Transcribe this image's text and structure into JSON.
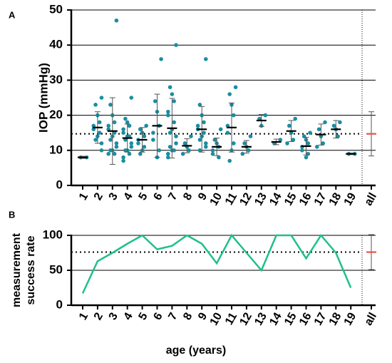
{
  "chart_data": [
    {
      "type": "dotplot",
      "panel": "A",
      "ylabel": "IOP (mmHg)",
      "categories": [
        "1",
        "2",
        "3",
        "4",
        "5",
        "6",
        "7",
        "8",
        "9",
        "10",
        "11",
        "12",
        "13",
        "14",
        "15",
        "16",
        "17",
        "18",
        "19"
      ],
      "points": [
        [
          8,
          8
        ],
        [
          25,
          23,
          20,
          18,
          17,
          16,
          15,
          14,
          13,
          12,
          10
        ],
        [
          47,
          23,
          20,
          18,
          17,
          16,
          15,
          14,
          13,
          12,
          11,
          10,
          10,
          9,
          9
        ],
        [
          25,
          19,
          18,
          17,
          16,
          15,
          14,
          14,
          13,
          12,
          11,
          10,
          10,
          9,
          8,
          7
        ],
        [
          17,
          16,
          15,
          14,
          13,
          12,
          11,
          10,
          9
        ],
        [
          36,
          24,
          21,
          17,
          15,
          13,
          10,
          8
        ],
        [
          40,
          28,
          26,
          24,
          21,
          20,
          18,
          16,
          15,
          14,
          12,
          11,
          10,
          10,
          9,
          8
        ],
        [
          14,
          12,
          11,
          10,
          9
        ],
        [
          36,
          23,
          20,
          18,
          17,
          16,
          15,
          14,
          13,
          12,
          11,
          10
        ],
        [
          16,
          13,
          12,
          11,
          10,
          9,
          8
        ],
        [
          28,
          26,
          23,
          20,
          17,
          15,
          12,
          10,
          7
        ],
        [
          14,
          12,
          11,
          10,
          9
        ],
        [
          20,
          19,
          17
        ],
        [
          13,
          12
        ],
        [
          19,
          17,
          15,
          13,
          12
        ],
        [
          15,
          14,
          13,
          12,
          11,
          10,
          9,
          8
        ],
        [
          18,
          16,
          14,
          12,
          11
        ],
        [
          18,
          17,
          16,
          14
        ],
        [
          9,
          9
        ]
      ],
      "means": [
        8,
        16.5,
        15.5,
        13.5,
        13,
        17,
        16.3,
        11.3,
        16,
        11,
        16.5,
        11,
        18.5,
        12.4,
        15.5,
        11.2,
        14.5,
        16,
        9
      ],
      "sd": [
        0.3,
        4.5,
        9.5,
        4,
        3.5,
        9,
        8.5,
        2,
        6.5,
        2.5,
        7,
        1.8,
        1.7,
        0.8,
        3,
        2.5,
        3,
        2.5,
        0.2
      ],
      "summary": {
        "label": "all",
        "mean": 14.7,
        "sd": 6.3,
        "color": "#e8524a"
      },
      "reference": 14.7,
      "color": "#1a8ea0",
      "ylim": [
        0,
        50
      ],
      "yticks": [
        0,
        10,
        20,
        30,
        40,
        50
      ],
      "grid": true
    },
    {
      "type": "line",
      "panel": "B",
      "ylabel": [
        "measurement",
        "success rate"
      ],
      "xlabel": "age (years)",
      "categories": [
        "1",
        "2",
        "3",
        "4",
        "5",
        "6",
        "7",
        "8",
        "9",
        "10",
        "11",
        "12",
        "13",
        "14",
        "15",
        "16",
        "17",
        "18",
        "19"
      ],
      "values": [
        17,
        63,
        75,
        88,
        100,
        80,
        85,
        100,
        88,
        60,
        100,
        75,
        50,
        100,
        100,
        67,
        100,
        75,
        25
      ],
      "summary": {
        "label": "all",
        "mean": 76,
        "sd": 25,
        "color": "#e8524a"
      },
      "reference": 76,
      "color": "#1fc08a",
      "ylim": [
        0,
        100
      ],
      "yticks": [
        0,
        50,
        100
      ],
      "grid": true
    }
  ]
}
